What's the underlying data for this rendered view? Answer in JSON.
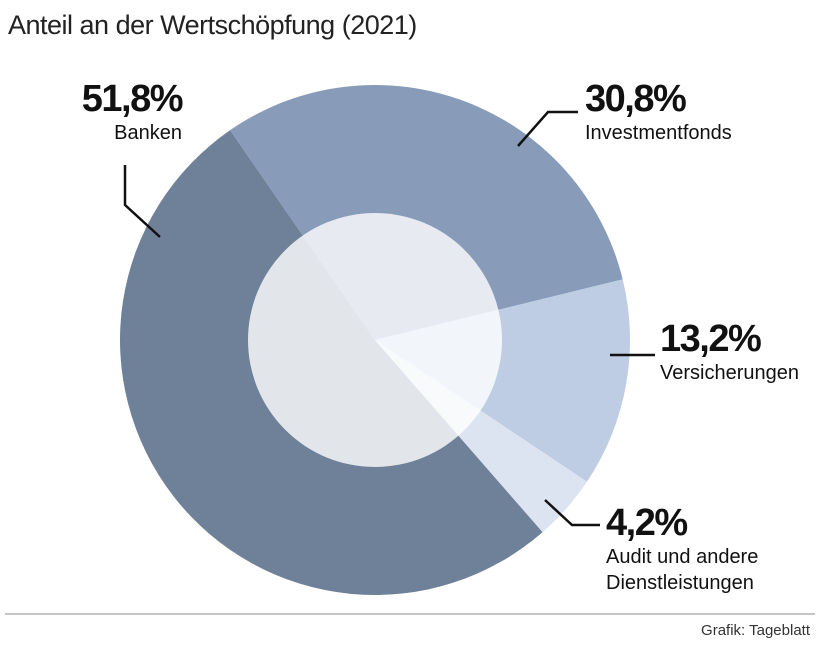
{
  "chart_data": {
    "type": "donut",
    "title": "Anteil an der Wertschöpfung (2021)",
    "categories": [
      "Banken",
      "Investmentfonds",
      "Versicherungen",
      "Audit und andere Dienstleistungen"
    ],
    "values": [
      51.8,
      30.8,
      13.2,
      4.2
    ],
    "value_labels": [
      "51,8%",
      "30,8%",
      "13,2%",
      "4,2%"
    ],
    "colors": [
      "#6f8199",
      "#889cba",
      "#bfcde4",
      "#dbe4f0"
    ],
    "source": "Grafik: Tageblatt"
  }
}
